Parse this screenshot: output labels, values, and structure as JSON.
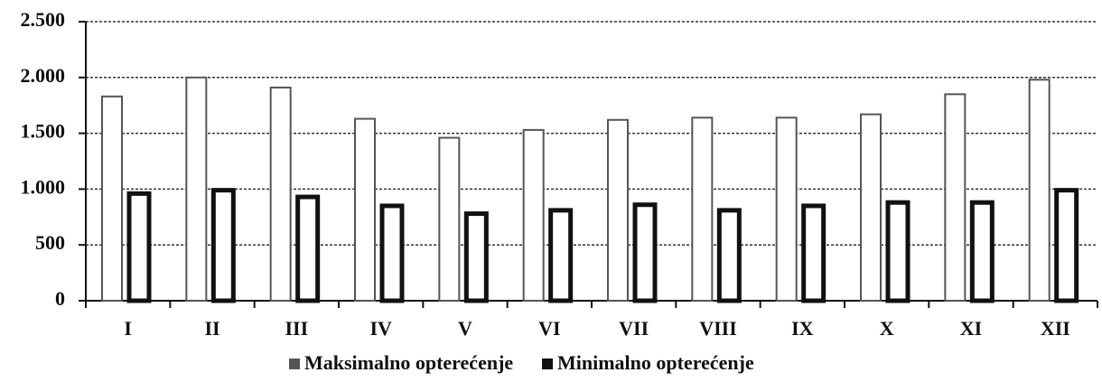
{
  "chart_data": {
    "type": "bar",
    "categories": [
      "I",
      "II",
      "III",
      "IV",
      "V",
      "VI",
      "VII",
      "VIII",
      "IX",
      "X",
      "XI",
      "XII"
    ],
    "series": [
      {
        "name": "Maksimalno opterećenje",
        "color": "#555555",
        "values": [
          1830,
          2000,
          1910,
          1630,
          1460,
          1530,
          1620,
          1640,
          1640,
          1670,
          1850,
          1980
        ]
      },
      {
        "name": "Minimalno opterećenje",
        "color": "#111111",
        "values": [
          960,
          990,
          930,
          850,
          780,
          810,
          860,
          810,
          850,
          880,
          880,
          990
        ]
      }
    ],
    "ylim": [
      0,
      2500
    ],
    "yticks": [
      0,
      500,
      {
        "value": 1000,
        "label": "1.000"
      },
      {
        "value": 1500,
        "label": "1.500"
      },
      {
        "value": 2000,
        "label": "2.000"
      },
      {
        "value": 2500,
        "label": "2.500"
      }
    ],
    "grid": true
  }
}
